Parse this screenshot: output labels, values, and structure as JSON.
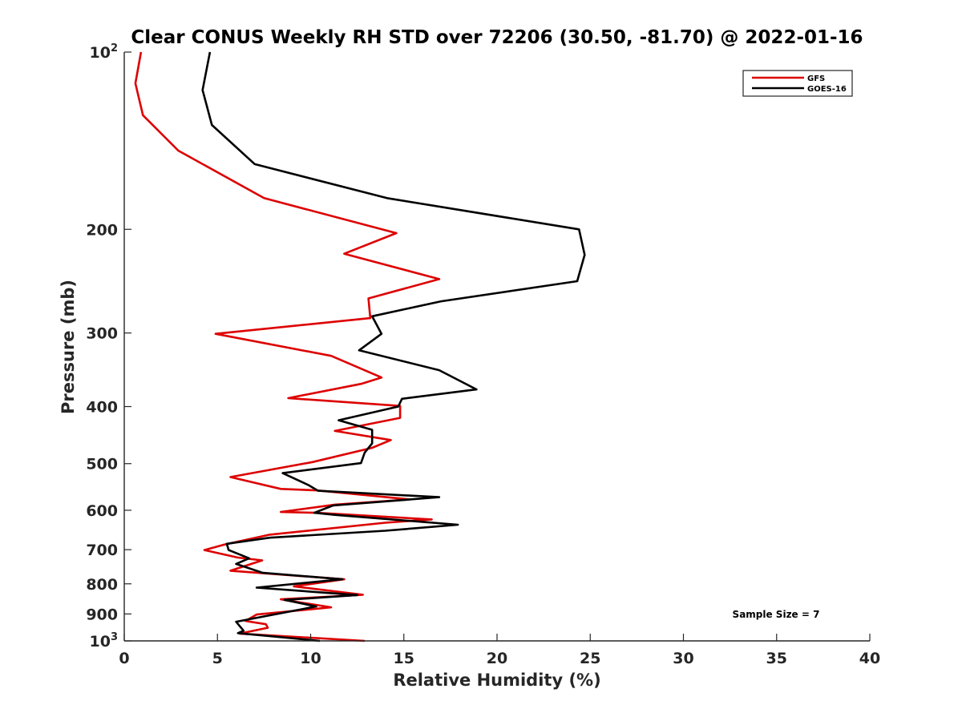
{
  "chart_data": {
    "type": "line",
    "title": "Clear CONUS Weekly RH STD over 72206 (30.50, -81.70) @ 2022-01-16",
    "xlabel": "Relative Humidity (%)",
    "ylabel": "Pressure (mb)",
    "xlim": [
      0,
      40
    ],
    "ylim": [
      100,
      1000
    ],
    "y_scale": "log",
    "y_reversed": true,
    "x_ticks": [
      0,
      5,
      10,
      15,
      20,
      25,
      30,
      35,
      40
    ],
    "x_tick_labels": [
      "0",
      "5",
      "10",
      "15",
      "20",
      "25",
      "30",
      "35",
      "40"
    ],
    "y_ticks": [
      {
        "value": 100,
        "base": "10",
        "exp": "2"
      },
      {
        "value": 200,
        "label": "200"
      },
      {
        "value": 300,
        "label": "300"
      },
      {
        "value": 400,
        "label": "400"
      },
      {
        "value": 500,
        "label": "500"
      },
      {
        "value": 600,
        "label": "600"
      },
      {
        "value": 700,
        "label": "700"
      },
      {
        "value": 800,
        "label": "800"
      },
      {
        "value": 900,
        "label": "900"
      },
      {
        "value": 1000,
        "base": "10",
        "exp": "3"
      }
    ],
    "grid": false,
    "legend_position": "top-right",
    "annotation": "Sample Size = 7",
    "series": [
      {
        "name": "GFS",
        "color": "#dd0000",
        "points": [
          [
            0.9,
            100
          ],
          [
            0.6,
            113
          ],
          [
            1.0,
            128
          ],
          [
            2.9,
            147
          ],
          [
            7.5,
            177
          ],
          [
            14.6,
            203
          ],
          [
            11.8,
            220
          ],
          [
            16.9,
            243
          ],
          [
            13.1,
            262
          ],
          [
            13.2,
            283
          ],
          [
            4.9,
            301
          ],
          [
            11.1,
            328
          ],
          [
            13.8,
            357
          ],
          [
            12.7,
            366
          ],
          [
            8.8,
            387
          ],
          [
            14.8,
            399
          ],
          [
            14.8,
            418
          ],
          [
            11.3,
            440
          ],
          [
            14.3,
            456
          ],
          [
            13.3,
            470
          ],
          [
            10.1,
            497
          ],
          [
            5.7,
            527
          ],
          [
            8.4,
            552
          ],
          [
            10.3,
            555
          ],
          [
            15.3,
            575
          ],
          [
            11.3,
            587
          ],
          [
            8.4,
            604
          ],
          [
            10.3,
            606
          ],
          [
            16.5,
            622
          ],
          [
            14.0,
            630
          ],
          [
            7.8,
            660
          ],
          [
            5.3,
            687
          ],
          [
            4.3,
            701
          ],
          [
            6.1,
            722
          ],
          [
            7.4,
            730
          ],
          [
            5.7,
            760
          ],
          [
            11.8,
            786
          ],
          [
            9.1,
            808
          ],
          [
            12.8,
            835
          ],
          [
            8.4,
            850
          ],
          [
            11.1,
            877
          ],
          [
            7.1,
            902
          ],
          [
            6.5,
            925
          ],
          [
            7.6,
            937
          ],
          [
            7.7,
            950
          ],
          [
            6.2,
            972
          ],
          [
            12.9,
            1000
          ]
        ]
      },
      {
        "name": "GOES-16",
        "color": "#000000",
        "points": [
          [
            4.6,
            100
          ],
          [
            4.2,
            116
          ],
          [
            4.7,
            133
          ],
          [
            7.0,
            155
          ],
          [
            14.1,
            177
          ],
          [
            24.4,
            200
          ],
          [
            24.7,
            221
          ],
          [
            24.3,
            245
          ],
          [
            17.0,
            265
          ],
          [
            13.3,
            281
          ],
          [
            13.8,
            301
          ],
          [
            12.6,
            321
          ],
          [
            16.9,
            347
          ],
          [
            18.9,
            374
          ],
          [
            14.9,
            388
          ],
          [
            14.7,
            400
          ],
          [
            11.5,
            422
          ],
          [
            13.3,
            438
          ],
          [
            13.3,
            462
          ],
          [
            12.9,
            479
          ],
          [
            12.7,
            499
          ],
          [
            8.5,
            519
          ],
          [
            9.9,
            544
          ],
          [
            10.4,
            556
          ],
          [
            16.9,
            570
          ],
          [
            11.2,
            589
          ],
          [
            10.2,
            606
          ],
          [
            11.3,
            611
          ],
          [
            17.9,
            635
          ],
          [
            14.0,
            650
          ],
          [
            7.8,
            668
          ],
          [
            5.5,
            684
          ],
          [
            5.6,
            701
          ],
          [
            6.7,
            724
          ],
          [
            6.0,
            740
          ],
          [
            7.4,
            766
          ],
          [
            11.7,
            786
          ],
          [
            7.1,
            812
          ],
          [
            12.5,
            836
          ],
          [
            8.6,
            852
          ],
          [
            10.3,
            874
          ],
          [
            6.0,
            928
          ],
          [
            6.4,
            961
          ],
          [
            6.1,
            970
          ],
          [
            10.5,
            1000
          ]
        ]
      }
    ]
  }
}
